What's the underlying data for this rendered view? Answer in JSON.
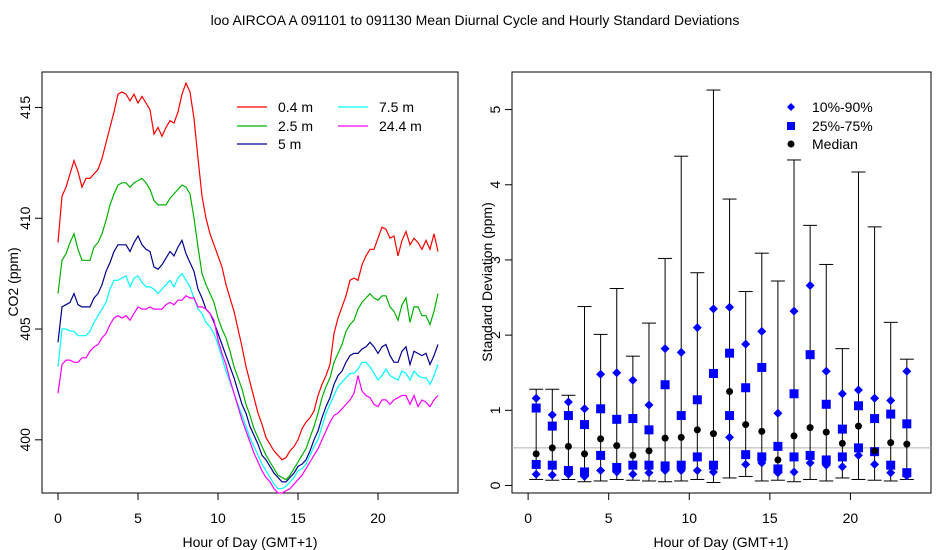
{
  "figure_title": "loo   AIRCOA A   091101 to 091130   Mean Diurnal Cycle and Hourly Standard Deviations",
  "chart_data": [
    {
      "type": "line",
      "xlabel": "Hour of Day (GMT+1)",
      "ylabel": "CO2 (ppm)",
      "xlim": [
        -1,
        25
      ],
      "ylim": [
        397.6,
        416.6
      ],
      "xticks": [
        0,
        5,
        10,
        15,
        20
      ],
      "yticks": [
        400,
        405,
        410,
        415
      ],
      "legend_position": "top-right",
      "x": [
        0.0,
        0.25,
        0.5,
        0.75,
        1.0,
        1.25,
        1.5,
        1.75,
        2.0,
        2.25,
        2.5,
        2.75,
        3.0,
        3.25,
        3.5,
        3.75,
        4.0,
        4.25,
        4.5,
        4.75,
        5.0,
        5.25,
        5.5,
        5.75,
        6.0,
        6.25,
        6.5,
        6.75,
        7.0,
        7.25,
        7.5,
        7.75,
        8.0,
        8.25,
        8.5,
        8.75,
        9.0,
        9.25,
        9.5,
        9.75,
        10.0,
        10.25,
        10.5,
        10.75,
        11.0,
        11.25,
        11.5,
        11.75,
        12.0,
        12.25,
        12.5,
        12.75,
        13.0,
        13.25,
        13.5,
        13.75,
        14.0,
        14.25,
        14.5,
        14.75,
        15.0,
        15.25,
        15.5,
        15.75,
        16.0,
        16.25,
        16.5,
        16.75,
        17.0,
        17.25,
        17.5,
        17.75,
        18.0,
        18.25,
        18.5,
        18.75,
        19.0,
        19.25,
        19.5,
        19.75,
        20.0,
        20.25,
        20.5,
        20.75,
        21.0,
        21.25,
        21.5,
        21.75,
        22.0,
        22.25,
        22.5,
        22.75,
        23.0,
        23.25,
        23.5,
        23.75
      ],
      "series": [
        {
          "name": "0.4 m",
          "color": "#ff0000",
          "values": [
            408.9,
            411.0,
            411.4,
            412.0,
            412.6,
            412.1,
            411.4,
            411.8,
            411.8,
            412.0,
            412.2,
            412.7,
            413.4,
            414.1,
            414.8,
            415.6,
            415.7,
            415.6,
            415.3,
            415.6,
            415.2,
            415.5,
            415.2,
            414.9,
            413.8,
            414.1,
            413.7,
            414.1,
            414.4,
            414.3,
            414.8,
            415.6,
            416.1,
            415.7,
            414.5,
            412.7,
            411.0,
            410.0,
            409.3,
            408.8,
            408.3,
            407.8,
            407.0,
            406.4,
            405.8,
            405.0,
            404.2,
            403.3,
            402.6,
            401.9,
            401.2,
            400.7,
            400.1,
            399.8,
            399.5,
            399.3,
            399.1,
            399.2,
            399.5,
            399.7,
            400.0,
            400.5,
            400.8,
            401.0,
            401.3,
            402.0,
            402.5,
            402.9,
            403.4,
            404.8,
            405.5,
            406.0,
            406.5,
            407.2,
            407.3,
            407.2,
            407.9,
            408.3,
            408.6,
            408.6,
            409.1,
            409.6,
            409.5,
            409.1,
            409.2,
            408.3,
            409.0,
            409.4,
            408.8,
            409.1,
            408.9,
            408.6,
            409.0,
            408.6,
            409.3,
            408.5
          ]
        },
        {
          "name": "2.5 m",
          "color": "#00b000",
          "values": [
            406.6,
            408.1,
            408.4,
            408.9,
            409.3,
            408.6,
            408.1,
            408.1,
            408.1,
            408.7,
            408.9,
            409.3,
            409.9,
            410.6,
            411.1,
            411.5,
            411.6,
            411.6,
            411.4,
            411.6,
            411.7,
            411.8,
            411.6,
            411.3,
            410.8,
            410.6,
            410.6,
            410.6,
            410.9,
            411.1,
            411.3,
            411.5,
            411.4,
            411.1,
            410.0,
            408.7,
            407.5,
            407.0,
            406.6,
            406.2,
            405.5,
            405.0,
            404.6,
            404.0,
            403.3,
            402.8,
            402.3,
            401.6,
            401.1,
            400.5,
            400.1,
            399.7,
            399.3,
            399.0,
            398.7,
            398.4,
            398.3,
            398.2,
            398.4,
            398.7,
            399.0,
            399.3,
            399.6,
            400.1,
            400.6,
            401.2,
            401.9,
            402.4,
            402.8,
            403.5,
            403.9,
            404.3,
            404.9,
            405.2,
            405.4,
            405.9,
            406.2,
            406.4,
            406.6,
            406.4,
            406.3,
            406.5,
            406.5,
            406.0,
            405.8,
            405.4,
            406.1,
            406.4,
            405.3,
            406.0,
            406.0,
            405.6,
            405.6,
            405.2,
            405.8,
            406.6
          ]
        },
        {
          "name": "5 m",
          "color": "#00008b",
          "values": [
            404.4,
            406.0,
            406.1,
            406.2,
            406.6,
            406.1,
            406.0,
            406.0,
            406.0,
            406.4,
            406.6,
            407.0,
            407.6,
            408.0,
            408.5,
            408.8,
            408.8,
            408.8,
            408.5,
            408.9,
            409.2,
            408.8,
            408.6,
            408.5,
            407.8,
            407.7,
            407.9,
            408.2,
            408.5,
            408.3,
            408.7,
            409.0,
            408.4,
            408.0,
            407.6,
            406.8,
            406.4,
            405.9,
            405.7,
            405.3,
            404.8,
            404.3,
            403.8,
            403.3,
            402.8,
            402.2,
            401.6,
            401.2,
            400.6,
            400.2,
            399.8,
            399.3,
            399.1,
            398.8,
            398.5,
            398.3,
            398.1,
            398.1,
            398.3,
            398.5,
            398.8,
            398.9,
            399.1,
            399.5,
            400.0,
            400.4,
            401.0,
            401.5,
            401.9,
            402.5,
            402.9,
            403.1,
            403.5,
            403.8,
            403.9,
            403.9,
            404.1,
            404.2,
            404.4,
            404.2,
            403.9,
            404.2,
            404.3,
            403.8,
            403.5,
            403.5,
            404.0,
            404.2,
            403.4,
            404.0,
            403.9,
            403.8,
            403.9,
            403.4,
            403.8,
            404.3
          ]
        },
        {
          "name": "7.5 m",
          "color": "#00ffff",
          "values": [
            403.3,
            405.0,
            405.0,
            404.9,
            404.9,
            404.7,
            404.7,
            404.7,
            404.9,
            405.3,
            405.6,
            405.9,
            406.2,
            406.8,
            407.2,
            407.2,
            407.3,
            407.4,
            406.9,
            407.3,
            407.4,
            407.1,
            406.9,
            406.9,
            406.8,
            406.6,
            406.8,
            407.0,
            407.2,
            406.9,
            407.3,
            407.5,
            407.2,
            406.9,
            406.4,
            405.9,
            405.7,
            405.3,
            405.1,
            404.8,
            404.3,
            403.7,
            403.1,
            402.6,
            402.1,
            401.6,
            401.1,
            400.6,
            400.1,
            399.7,
            399.3,
            398.9,
            398.6,
            398.3,
            398.0,
            397.8,
            397.8,
            397.9,
            398.1,
            398.3,
            398.6,
            398.7,
            398.9,
            399.3,
            399.7,
            400.0,
            400.6,
            401.2,
            401.6,
            402.0,
            402.4,
            402.6,
            402.8,
            403.0,
            403.0,
            403.2,
            403.5,
            403.5,
            403.3,
            403.0,
            402.7,
            402.9,
            403.2,
            402.9,
            402.8,
            402.7,
            403.1,
            403.0,
            402.7,
            403.1,
            402.9,
            402.8,
            402.8,
            402.5,
            402.9,
            403.4
          ]
        },
        {
          "name": "24.4 m",
          "color": "#ff00ff",
          "values": [
            402.1,
            403.4,
            403.6,
            403.6,
            403.5,
            403.5,
            403.7,
            403.7,
            404.0,
            404.2,
            404.3,
            404.6,
            404.8,
            405.2,
            405.5,
            405.6,
            405.5,
            405.6,
            405.4,
            405.7,
            406.0,
            405.9,
            405.9,
            406.0,
            405.9,
            405.9,
            405.9,
            406.1,
            406.2,
            406.1,
            406.3,
            406.3,
            406.5,
            406.4,
            406.4,
            406.0,
            406.0,
            405.9,
            405.7,
            405.4,
            404.5,
            403.9,
            403.4,
            402.7,
            402.1,
            401.5,
            400.9,
            400.4,
            399.9,
            399.4,
            399.0,
            398.6,
            398.3,
            398.1,
            397.8,
            397.6,
            397.6,
            397.7,
            397.8,
            398.0,
            398.2,
            398.4,
            398.7,
            399.0,
            399.3,
            399.6,
            400.0,
            400.4,
            400.8,
            401.1,
            401.2,
            401.4,
            401.6,
            401.8,
            402.1,
            402.9,
            402.2,
            402.0,
            401.9,
            401.6,
            401.5,
            401.8,
            401.8,
            401.6,
            401.8,
            401.9,
            402.0,
            402.0,
            401.6,
            402.0,
            401.5,
            401.8,
            401.7,
            401.5,
            401.8,
            402.0
          ]
        }
      ]
    },
    {
      "type": "scatter",
      "xlabel": "Hour of Day (GMT+1)",
      "ylabel": "Standard Deviation (ppm)",
      "xlim": [
        -1,
        25
      ],
      "ylim": [
        -0.1,
        5.5
      ],
      "xticks": [
        0,
        5,
        10,
        15,
        20
      ],
      "yticks": [
        0,
        1,
        2,
        3,
        4,
        5
      ],
      "reference_line": 0.5,
      "legend_position": "top-right",
      "legend": [
        {
          "label": "10%-90%",
          "marker": "diamond",
          "color": "#0000ff"
        },
        {
          "label": "25%-75%",
          "marker": "square",
          "color": "#0000ff"
        },
        {
          "label": "Median",
          "marker": "circle",
          "color": "#000000"
        }
      ],
      "x": [
        0.5,
        1.5,
        2.5,
        3.5,
        4.5,
        5.5,
        6.5,
        7.5,
        8.5,
        9.5,
        10.5,
        11.5,
        12.5,
        13.5,
        14.5,
        15.5,
        16.5,
        17.5,
        18.5,
        19.5,
        20.5,
        21.5,
        22.5,
        23.5
      ],
      "min": [
        0.08,
        0.07,
        0.08,
        0.05,
        0.06,
        0.08,
        0.07,
        0.06,
        0.05,
        0.06,
        0.08,
        0.04,
        0.1,
        0.12,
        0.06,
        0.07,
        0.05,
        0.08,
        0.06,
        0.1,
        0.08,
        0.07,
        0.06,
        0.08
      ],
      "max": [
        1.28,
        1.28,
        1.2,
        2.38,
        2.01,
        2.62,
        1.72,
        2.16,
        3.02,
        4.38,
        2.83,
        5.26,
        3.81,
        2.58,
        3.09,
        2.72,
        4.33,
        3.46,
        2.94,
        1.82,
        4.17,
        3.44,
        2.17,
        1.68
      ],
      "p10": [
        0.15,
        0.14,
        0.15,
        0.12,
        0.2,
        0.18,
        0.15,
        0.17,
        0.2,
        0.2,
        0.2,
        0.18,
        0.64,
        0.28,
        0.3,
        0.17,
        0.18,
        0.3,
        0.27,
        0.25,
        0.4,
        0.28,
        0.17,
        0.13
      ],
      "q25": [
        0.28,
        0.27,
        0.2,
        0.18,
        0.4,
        0.24,
        0.27,
        0.27,
        0.26,
        0.27,
        0.38,
        0.27,
        0.93,
        0.41,
        0.38,
        0.22,
        0.38,
        0.4,
        0.34,
        0.38,
        0.5,
        0.45,
        0.27,
        0.17
      ],
      "median": [
        0.42,
        0.5,
        0.52,
        0.42,
        0.62,
        0.53,
        0.4,
        0.46,
        0.63,
        0.64,
        0.74,
        0.69,
        1.25,
        0.81,
        0.72,
        0.34,
        0.66,
        0.77,
        0.71,
        0.56,
        0.79,
        0.46,
        0.57,
        0.55
      ],
      "q75": [
        1.03,
        0.79,
        0.93,
        0.81,
        1.02,
        0.88,
        0.89,
        0.74,
        1.34,
        0.93,
        1.14,
        1.49,
        1.76,
        1.3,
        1.57,
        0.52,
        1.22,
        1.74,
        1.08,
        0.75,
        1.06,
        0.89,
        0.95,
        0.82
      ],
      "p90": [
        1.16,
        0.94,
        1.11,
        1.02,
        1.48,
        1.5,
        1.4,
        1.07,
        1.82,
        1.77,
        2.1,
        2.35,
        2.37,
        1.88,
        2.05,
        0.96,
        2.32,
        2.66,
        1.52,
        1.22,
        1.27,
        1.16,
        1.13,
        1.52
      ]
    }
  ]
}
